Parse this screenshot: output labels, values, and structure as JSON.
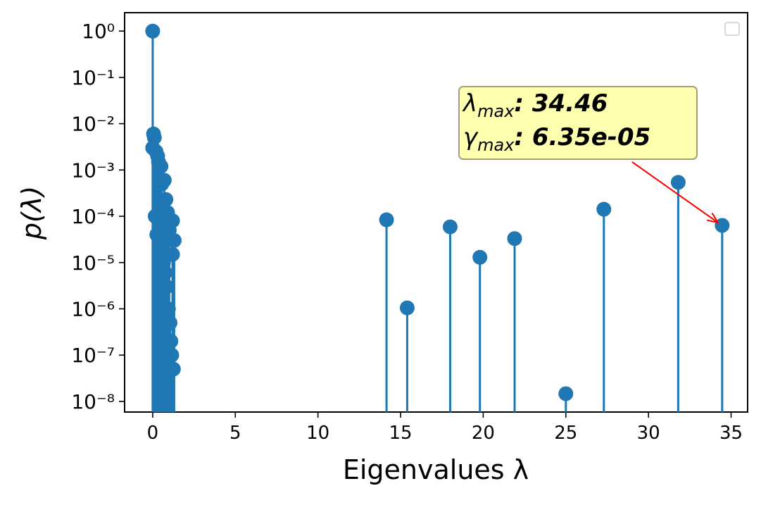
{
  "chart_data": {
    "type": "stem",
    "xlabel": "Eigenvalues λ",
    "ylabel": "p(λ)",
    "log_y": true,
    "color": "#1f77b4",
    "x": [
      0,
      0,
      0.05,
      0.1,
      0.2,
      0.3,
      0.35,
      0.4,
      0.5,
      0.55,
      0.7,
      0.8,
      0.6,
      0.9,
      1.0,
      1.2,
      1.3,
      1.2,
      0.15,
      0.25,
      0.45,
      0.65,
      0.75,
      0.85,
      0.95,
      1.05,
      1.1,
      1.15,
      1.25,
      14.15,
      15.4,
      18.0,
      19.8,
      21.9,
      25.0,
      27.3,
      31.8,
      34.46
    ],
    "values": [
      1.0,
      0.003,
      0.006,
      0.005,
      0.0025,
      0.002,
      0.0015,
      0.0013,
      0.0012,
      0.0005,
      0.0006,
      0.00023,
      0.0002,
      0.00012,
      5e-05,
      8e-05,
      3e-05,
      1.5e-05,
      0.0001,
      4e-05,
      2e-05,
      1e-05,
      6e-06,
      3e-06,
      1e-06,
      5e-07,
      2e-07,
      1e-07,
      5e-08,
      8.4e-05,
      1.05e-06,
      5.9e-05,
      1.3e-05,
      3.3e-05,
      1.47e-08,
      0.000142,
      0.00054,
      6.35e-05
    ],
    "xlim": [
      -1.7,
      36.0
    ],
    "xticks": [
      0,
      5,
      10,
      15,
      20,
      25,
      30,
      35
    ],
    "ylim": [
      5.9e-09,
      2.5
    ],
    "yticks": [
      {
        "value": 1,
        "label": "10⁰"
      },
      {
        "value": 0.1,
        "label": "10⁻¹"
      },
      {
        "value": 0.01,
        "label": "10⁻²"
      },
      {
        "value": 0.001,
        "label": "10⁻³"
      },
      {
        "value": 0.0001,
        "label": "10⁻⁴"
      },
      {
        "value": 1e-05,
        "label": "10⁻⁵"
      },
      {
        "value": 1e-06,
        "label": "10⁻⁶"
      },
      {
        "value": 1e-07,
        "label": "10⁻⁷"
      },
      {
        "value": 1e-08,
        "label": "10⁻⁸"
      }
    ],
    "annotation": {
      "lines": [
        {
          "symbol": "λ",
          "sub": "max",
          "text": ": 34.46"
        },
        {
          "symbol": "γ",
          "sub": "max",
          "text": ": 6.35e-05"
        }
      ],
      "arrow_color": "#ff0000"
    }
  }
}
